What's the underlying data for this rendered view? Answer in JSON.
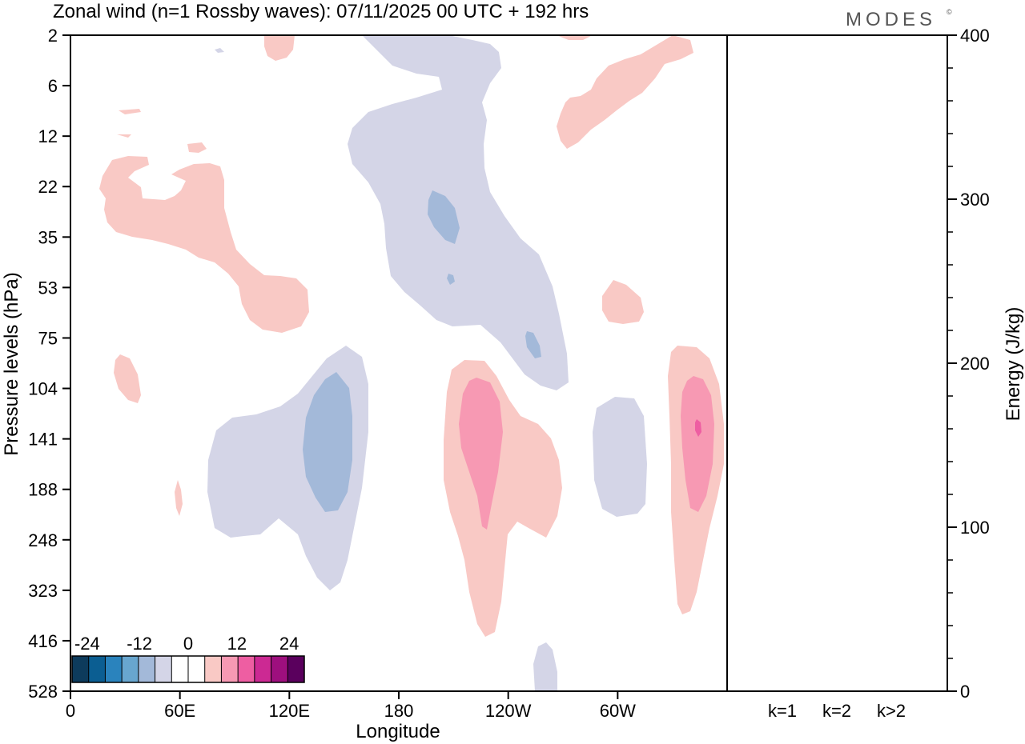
{
  "chart_data": {
    "type": "contour",
    "title": "Zonal wind (n=1 Rossby waves):  07/11/2025  00 UTC  + 192 hrs",
    "brand": "MODES",
    "brand_mark": "©",
    "xlabel": "Longitude",
    "ylabel": "Pressure levels (hPa)",
    "y2label": "Energy (J/kg)",
    "x_ticks": [
      "0",
      "60E",
      "120E",
      "180",
      "120W",
      "60W"
    ],
    "y_ticks": [
      "2",
      "6",
      "12",
      "22",
      "35",
      "53",
      "75",
      "104",
      "141",
      "188",
      "248",
      "323",
      "416",
      "528"
    ],
    "energy_ticks": [
      "0",
      "100",
      "200",
      "300",
      "400"
    ],
    "energy_ylim": [
      0,
      400
    ],
    "energy_categories": [
      "k=1",
      "k=2",
      "k>2"
    ],
    "energy_values": [
      0.5,
      0,
      0.5
    ],
    "colorbar": {
      "labels": [
        "-24",
        "-12",
        "0",
        "12",
        "24"
      ],
      "colors": [
        "#0d3b5c",
        "#0b5e92",
        "#2a83bd",
        "#68a6cf",
        "#a3b9d9",
        "#d4d5e7",
        "#ffffff",
        "#ffffff",
        "#f9c9c5",
        "#f799b3",
        "#ee5ea2",
        "#cc2993",
        "#9e0f7e",
        "#5a005d"
      ]
    },
    "colors": {
      "neg_weak": "#d4d5e7",
      "neg_mid": "#a3b9d9",
      "pos_weak": "#f9c9c5",
      "pos_mid": "#f799b3",
      "pos_strong": "#ee5ea2"
    }
  }
}
